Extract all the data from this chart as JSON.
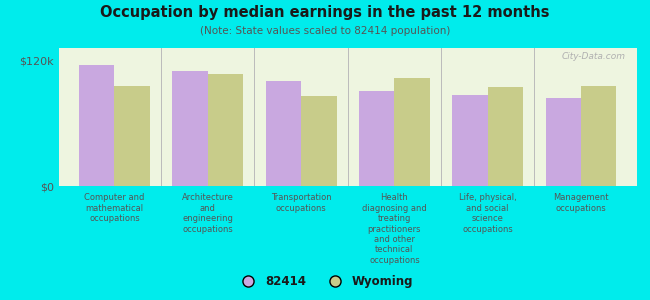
{
  "title": "Occupation by median earnings in the past 12 months",
  "subtitle": "(Note: State values scaled to 82414 population)",
  "background_outer": "#00ecec",
  "background_inner": "#eef5e0",
  "bar_color_82414": "#c9a8e0",
  "bar_color_wyoming": "#c8cc8a",
  "categories": [
    "Computer and\nmathematical\noccupations",
    "Architecture\nand\nengineering\noccupations",
    "Transportation\noccupations",
    "Health\ndiagnosing and\ntreating\npractitioners\nand other\ntechnical\noccupations",
    "Life, physical,\nand social\nscience\noccupations",
    "Management\noccupations"
  ],
  "values_82414": [
    116000,
    110000,
    100000,
    91000,
    87000,
    84000
  ],
  "values_wyoming": [
    96000,
    107000,
    86000,
    103000,
    95000,
    96000
  ],
  "ylim": [
    0,
    132000
  ],
  "yticks": [
    0,
    120000
  ],
  "ytick_labels": [
    "$0",
    "$120k"
  ],
  "watermark": "City-Data.com",
  "legend_labels": [
    "82414",
    "Wyoming"
  ],
  "title_color": "#1a1a1a",
  "subtitle_color": "#555555",
  "label_color": "#555555"
}
